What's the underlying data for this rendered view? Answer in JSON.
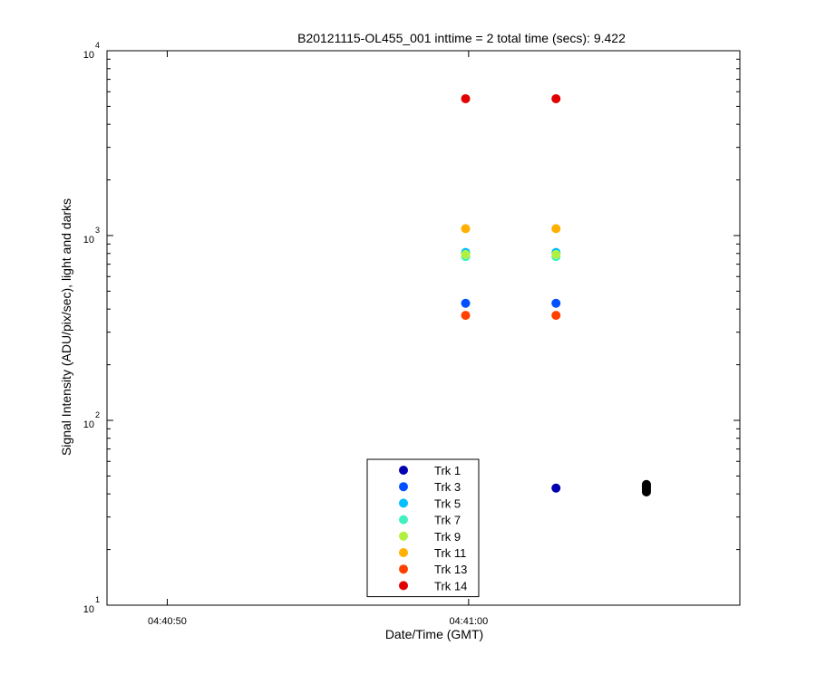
{
  "chart_data": {
    "type": "scatter",
    "title": "B20121115-OL455_001 inttime = 2 total time (secs): 9.422",
    "xlabel": "Date/Time (GMT)",
    "ylabel": "Signal Intensity (ADU/pix/sec), light and darks",
    "yscale": "log",
    "ylim": [
      10,
      10000
    ],
    "xlim": [
      "04:40:48",
      "04:41:09"
    ],
    "x_ticks": [
      {
        "t": "04:40:50",
        "label": "04:40:50"
      },
      {
        "t": "04:41:00",
        "label": "04:41:00"
      }
    ],
    "y_ticks": [
      {
        "value": 10,
        "base": "10",
        "exp": "1"
      },
      {
        "value": 100,
        "base": "10",
        "exp": "2"
      },
      {
        "value": 1000,
        "base": "10",
        "exp": "3"
      },
      {
        "value": 10000,
        "base": "10",
        "exp": "4"
      }
    ],
    "grid": false,
    "legend_position": "bottom-center",
    "series": [
      {
        "name": "Trk 1",
        "color": "#0000b0",
        "points": [
          [
            "04:40:59.9",
            43
          ],
          [
            "04:41:02.9",
            43
          ]
        ]
      },
      {
        "name": "Trk 3",
        "color": "#0050ff",
        "points": [
          [
            "04:40:59.9",
            430
          ],
          [
            "04:41:02.9",
            430
          ]
        ]
      },
      {
        "name": "Trk 5",
        "color": "#00c0ff",
        "points": [
          [
            "04:40:59.9",
            810
          ],
          [
            "04:41:02.9",
            810
          ]
        ]
      },
      {
        "name": "Trk 7",
        "color": "#40f0c0",
        "points": [
          [
            "04:40:59.9",
            770
          ],
          [
            "04:41:02.9",
            770
          ]
        ]
      },
      {
        "name": "Trk 9",
        "color": "#b0f040",
        "points": [
          [
            "04:40:59.9",
            790
          ],
          [
            "04:41:02.9",
            790
          ]
        ]
      },
      {
        "name": "Trk 11",
        "color": "#ffb000",
        "points": [
          [
            "04:40:59.9",
            1090
          ],
          [
            "04:41:02.9",
            1090
          ]
        ]
      },
      {
        "name": "Trk 13",
        "color": "#ff4000",
        "points": [
          [
            "04:40:59.9",
            370
          ],
          [
            "04:41:02.9",
            370
          ]
        ]
      },
      {
        "name": "Trk 14",
        "color": "#e00000",
        "points": [
          [
            "04:40:59.9",
            5500
          ],
          [
            "04:41:02.9",
            5500
          ]
        ]
      }
    ],
    "dark_points": {
      "color": "#000000",
      "points": [
        [
          "04:40:56.9",
          39
        ],
        [
          "04:40:56.9",
          40
        ],
        [
          "04:40:56.9",
          41
        ],
        [
          "04:40:56.9",
          42
        ],
        [
          "04:40:56.9",
          43
        ],
        [
          "04:41:05.9",
          41
        ],
        [
          "04:41:05.9",
          42
        ],
        [
          "04:41:05.9",
          43
        ],
        [
          "04:41:05.9",
          44
        ],
        [
          "04:41:05.9",
          45
        ]
      ]
    }
  }
}
